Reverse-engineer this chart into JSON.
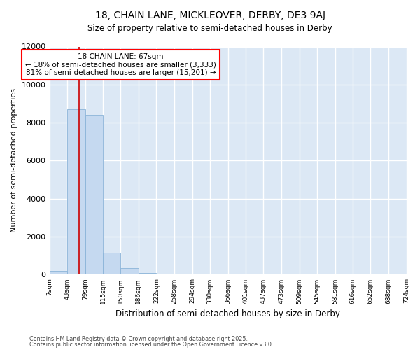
{
  "title1": "18, CHAIN LANE, MICKLEOVER, DERBY, DE3 9AJ",
  "title2": "Size of property relative to semi-detached houses in Derby",
  "xlabel": "Distribution of semi-detached houses by size in Derby",
  "ylabel": "Number of semi-detached properties",
  "bins": [
    7,
    43,
    79,
    115,
    150,
    186,
    222,
    258,
    294,
    330,
    366,
    401,
    437,
    473,
    509,
    545,
    581,
    616,
    652,
    688,
    724
  ],
  "counts": [
    200,
    8700,
    8400,
    1150,
    350,
    100,
    50,
    0,
    0,
    0,
    0,
    0,
    0,
    0,
    0,
    0,
    0,
    0,
    0,
    0
  ],
  "bar_color": "#c5d9f0",
  "bar_edge_color": "#8bb4d8",
  "property_size": 67,
  "annotation_title": "18 CHAIN LANE: 67sqm",
  "annotation_line1": "← 18% of semi-detached houses are smaller (3,333)",
  "annotation_line2": "81% of semi-detached houses are larger (15,201) →",
  "vline_color": "#cc0000",
  "ylim_max": 12000,
  "plot_bg_color": "#dce8f5",
  "fig_bg_color": "#ffffff",
  "grid_color": "#ffffff",
  "footer1": "Contains HM Land Registry data © Crown copyright and database right 2025.",
  "footer2": "Contains public sector information licensed under the Open Government Licence v3.0."
}
